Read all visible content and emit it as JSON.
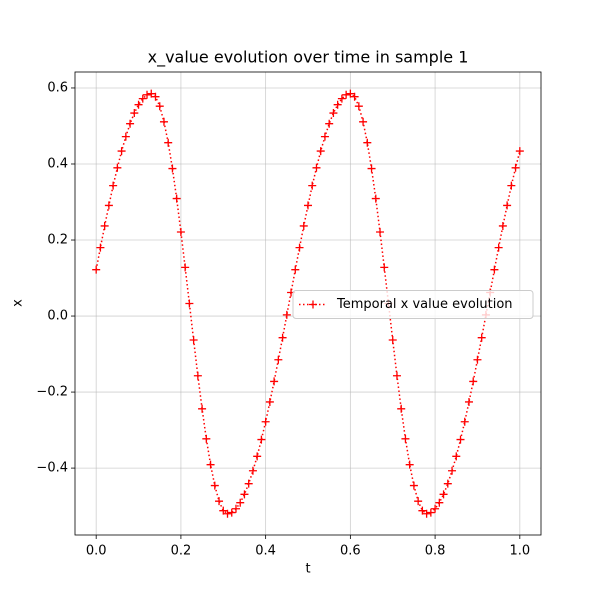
{
  "chart_data": {
    "type": "line",
    "title": "x_value evolution over time in sample 1",
    "xlabel": "t",
    "ylabel": "x",
    "x": [
      0,
      0.01,
      0.02,
      0.03,
      0.04,
      0.05,
      0.06,
      0.07,
      0.08,
      0.09,
      0.1,
      0.11,
      0.12,
      0.13,
      0.14,
      0.15,
      0.16,
      0.17,
      0.18,
      0.19,
      0.2,
      0.21,
      0.22,
      0.23,
      0.24,
      0.25,
      0.26,
      0.27,
      0.28,
      0.29,
      0.3,
      0.31,
      0.32,
      0.33,
      0.34,
      0.35,
      0.36,
      0.37,
      0.38,
      0.39,
      0.4,
      0.41,
      0.42,
      0.43,
      0.44,
      0.45,
      0.46,
      0.47,
      0.48,
      0.49,
      0.5,
      0.51,
      0.52,
      0.53,
      0.54,
      0.55,
      0.56,
      0.57,
      0.58,
      0.59,
      0.6,
      0.61,
      0.62,
      0.63,
      0.64,
      0.65,
      0.66,
      0.67,
      0.68,
      0.69,
      0.7,
      0.71,
      0.72,
      0.73,
      0.74,
      0.75,
      0.76,
      0.77,
      0.78,
      0.79,
      0.8,
      0.81,
      0.82,
      0.83,
      0.84,
      0.85,
      0.86,
      0.87,
      0.88,
      0.89,
      0.9,
      0.91,
      0.92,
      0.93,
      0.94,
      0.95,
      0.96,
      0.97,
      0.98,
      0.99,
      1
    ],
    "series": [
      {
        "name": "Temporal x value evolution",
        "color": "#ff0000",
        "linestyle": "dotted",
        "marker": "+",
        "values": [
          0.122,
          0.18,
          0.237,
          0.291,
          0.343,
          0.39,
          0.434,
          0.472,
          0.506,
          0.534,
          0.556,
          0.572,
          0.582,
          0.585,
          0.577,
          0.552,
          0.511,
          0.456,
          0.388,
          0.309,
          0.221,
          0.128,
          0.033,
          -0.063,
          -0.157,
          -0.244,
          -0.323,
          -0.391,
          -0.446,
          -0.487,
          -0.512,
          -0.52,
          -0.517,
          -0.507,
          -0.491,
          -0.469,
          -0.441,
          -0.407,
          -0.369,
          -0.325,
          -0.278,
          -0.226,
          -0.172,
          -0.115,
          -0.057,
          0.003,
          0.062,
          0.122,
          0.18,
          0.237,
          0.291,
          0.343,
          0.39,
          0.434,
          0.472,
          0.506,
          0.534,
          0.556,
          0.572,
          0.582,
          0.585,
          0.577,
          0.552,
          0.511,
          0.456,
          0.388,
          0.309,
          0.221,
          0.128,
          0.033,
          -0.063,
          -0.157,
          -0.244,
          -0.323,
          -0.391,
          -0.446,
          -0.487,
          -0.512,
          -0.52,
          -0.517,
          -0.507,
          -0.491,
          -0.469,
          -0.441,
          -0.407,
          -0.369,
          -0.325,
          -0.278,
          -0.226,
          -0.172,
          -0.115,
          -0.057,
          0.003,
          0.062,
          0.122,
          0.18,
          0.237,
          0.291,
          0.343,
          0.39,
          0.434
        ]
      }
    ],
    "xlim": [
      -0.05,
      1.05
    ],
    "ylim": [
      -0.576,
      0.642
    ],
    "xticks": [
      {
        "value": 0,
        "label": "0.0"
      },
      {
        "value": 0.2,
        "label": "0.2"
      },
      {
        "value": 0.4,
        "label": "0.4"
      },
      {
        "value": 0.6,
        "label": "0.6"
      },
      {
        "value": 0.8,
        "label": "0.8"
      },
      {
        "value": 1,
        "label": "1.0"
      }
    ],
    "yticks": [
      {
        "value": -0.4,
        "label": "−0.4"
      },
      {
        "value": -0.2,
        "label": "−0.2"
      },
      {
        "value": 0,
        "label": "0.0"
      },
      {
        "value": 0.2,
        "label": "0.2"
      },
      {
        "value": 0.4,
        "label": "0.4"
      },
      {
        "value": 0.6,
        "label": "0.6"
      }
    ],
    "grid": true,
    "legend": "center right"
  }
}
